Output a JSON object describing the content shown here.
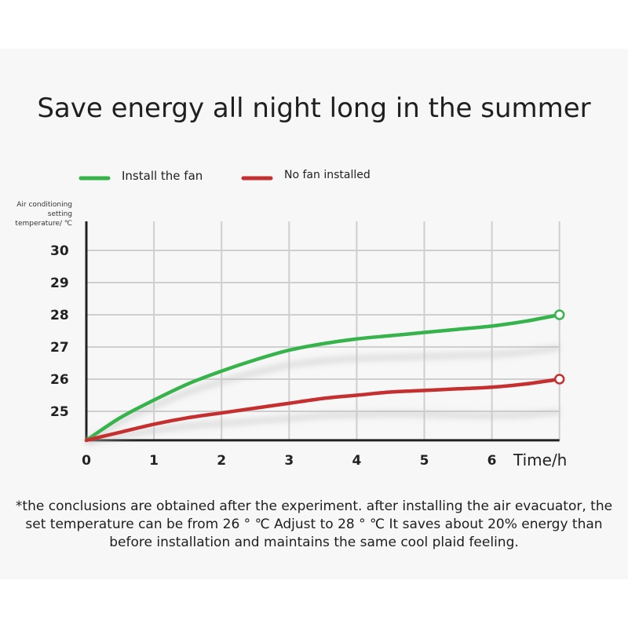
{
  "title": "Save energy all night long in the summer",
  "legend": [
    {
      "label": "Install the fan",
      "color": "#36b34a"
    },
    {
      "label": "No fan installed",
      "color": "#c62f2f"
    }
  ],
  "ylabel": "Air conditioning setting temperature/ ℃",
  "xlabel": "Time/h",
  "note": "*the conclusions are obtained after the experiment. after installing the air evacuator, the set temperature can be from 26 ° ℃ Adjust to 28 ° ℃  It saves about 20% energy than before installation and maintains the same cool plaid feeling.",
  "chart_data": {
    "type": "line",
    "title": "Save energy all night long in the summer",
    "xlabel": "Time/h",
    "ylabel": "Air conditioning setting temperature/ ℃",
    "x_ticks": [
      "0",
      "1",
      "2",
      "3",
      "4",
      "5",
      "6"
    ],
    "y_ticks": [
      25,
      26,
      27,
      28,
      29,
      30
    ],
    "xlim": [
      0,
      7
    ],
    "ylim": [
      24.1,
      31
    ],
    "grid": true,
    "legend_position": "top-left",
    "series": [
      {
        "name": "Install the fan",
        "color": "#36b34a",
        "x": [
          0,
          0.5,
          1,
          1.5,
          2,
          2.5,
          3,
          3.5,
          4,
          4.5,
          5,
          5.5,
          6,
          6.5,
          7
        ],
        "values": [
          24.1,
          24.8,
          25.35,
          25.85,
          26.25,
          26.6,
          26.9,
          27.1,
          27.25,
          27.35,
          27.45,
          27.55,
          27.65,
          27.8,
          28.0
        ]
      },
      {
        "name": "No fan installed",
        "color": "#c62f2f",
        "x": [
          0,
          0.5,
          1,
          1.5,
          2,
          2.5,
          3,
          3.5,
          4,
          4.5,
          5,
          5.5,
          6,
          6.5,
          7
        ],
        "values": [
          24.1,
          24.35,
          24.6,
          24.8,
          24.95,
          25.1,
          25.25,
          25.4,
          25.5,
          25.6,
          25.65,
          25.7,
          25.75,
          25.85,
          26.0
        ]
      }
    ]
  }
}
